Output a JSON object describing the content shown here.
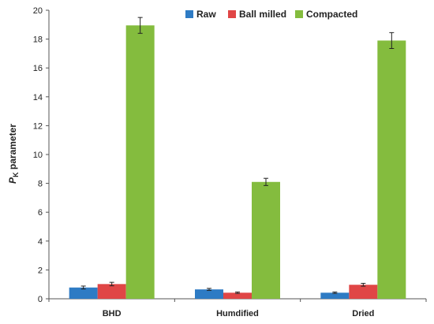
{
  "chart_data": {
    "type": "bar",
    "categories": [
      "BHD",
      "Humdified",
      "Dried"
    ],
    "series": [
      {
        "name": "Raw",
        "color": "#2E7BC4",
        "values": [
          0.78,
          0.65,
          0.42
        ],
        "errors": [
          0.1,
          0.07,
          0.05
        ]
      },
      {
        "name": "Ball milled",
        "color": "#E04646",
        "values": [
          1.02,
          0.42,
          0.97
        ],
        "errors": [
          0.12,
          0.05,
          0.1
        ]
      },
      {
        "name": "Compacted",
        "color": "#84BC3E",
        "values": [
          18.95,
          8.1,
          17.9
        ],
        "errors": [
          0.55,
          0.25,
          0.55
        ]
      }
    ],
    "ylabel_main": "P",
    "ylabel_sub": "K",
    "ylabel_rest": " parameter",
    "xlabel": "",
    "ylim": [
      0,
      20
    ],
    "yticks": [
      0,
      2,
      4,
      6,
      8,
      10,
      12,
      14,
      16,
      18,
      20
    ],
    "grid": false,
    "legend_position": "top-center"
  }
}
